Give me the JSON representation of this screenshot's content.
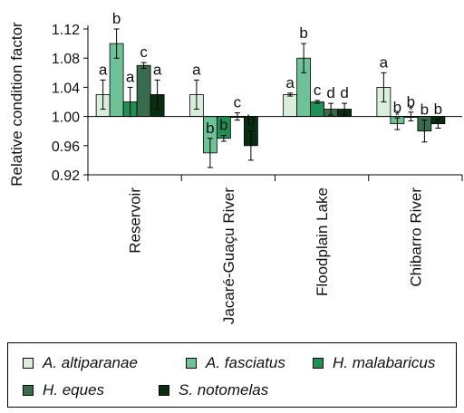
{
  "chart_data": {
    "type": "bar",
    "ylabel": "Relative condition factor",
    "ylim": [
      0.92,
      1.12
    ],
    "yticks": [
      "0.92",
      "0.96",
      "1.00",
      "1.04",
      "1.08",
      "1.12"
    ],
    "reference_line": 1.0,
    "categories": [
      "Reservoir",
      "Jacaré-Guaçu River",
      "Floodplain Lake",
      "Chibarro River"
    ],
    "series": [
      {
        "name": "A. altiparanae",
        "color": "#d9eedc",
        "values": [
          1.03,
          1.03,
          1.03,
          1.04
        ],
        "errors": [
          0.02,
          0.02,
          0.002,
          0.02
        ],
        "labels": [
          "a",
          "a",
          "a",
          "a"
        ],
        "stars": [
          "",
          "",
          "",
          ""
        ]
      },
      {
        "name": "A. fasciatus",
        "color": "#6fc197",
        "values": [
          1.1,
          0.95,
          1.08,
          0.99
        ],
        "errors": [
          0.02,
          0.02,
          0.02,
          0.008
        ],
        "labels": [
          "b",
          "b",
          "b",
          "b"
        ],
        "stars": [
          "",
          "",
          "",
          "*"
        ]
      },
      {
        "name": "H. malabaricus",
        "color": "#1f8f55",
        "values": [
          1.02,
          0.97,
          1.02,
          1.0
        ],
        "errors": [
          0.02,
          0.004,
          0.002,
          0.006
        ],
        "labels": [
          "a",
          "b",
          "c",
          "b"
        ],
        "stars": [
          "",
          "",
          "",
          "*"
        ]
      },
      {
        "name": "H. eques",
        "color": "#3a6b4d",
        "values": [
          1.07,
          1.0,
          1.01,
          0.98
        ],
        "errors": [
          0.004,
          0.005,
          0.008,
          0.015
        ],
        "labels": [
          "c",
          "c",
          "d",
          "b"
        ],
        "stars": [
          "",
          "",
          "",
          ""
        ]
      },
      {
        "name": "S. notomelas",
        "color": "#082e12",
        "values": [
          1.03,
          0.96,
          1.01,
          0.99
        ],
        "errors": [
          0.02,
          0.02,
          0.008,
          0.006
        ],
        "labels": [
          "a",
          "b",
          "d",
          "b"
        ],
        "stars": [
          "",
          "",
          "",
          ""
        ]
      }
    ],
    "legend_position": "bottom",
    "grid": false
  }
}
